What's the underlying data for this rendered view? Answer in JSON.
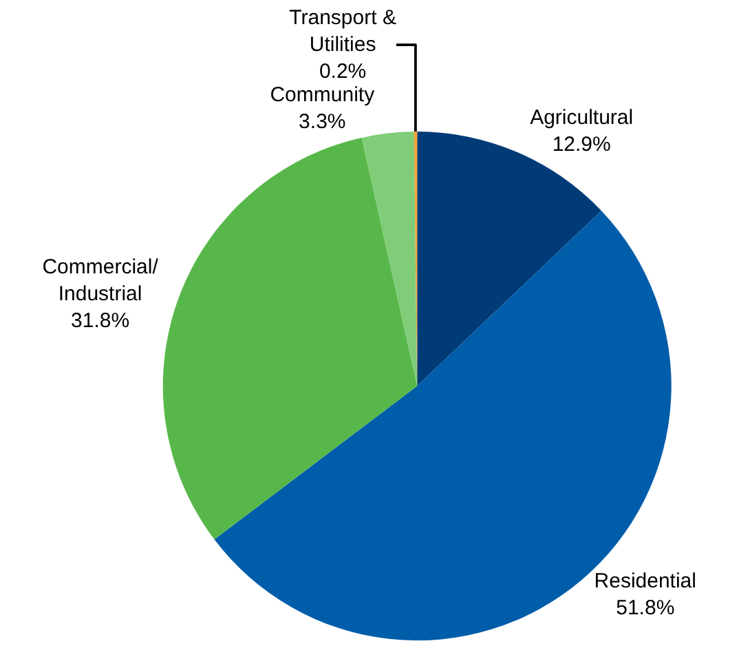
{
  "chart_data": {
    "type": "pie",
    "categories": [
      "Agricultural",
      "Residential",
      "Commercial/\nIndustrial",
      "Community",
      "Transport &\nUtilities"
    ],
    "values": [
      12.9,
      51.8,
      31.8,
      3.3,
      0.2
    ],
    "value_labels": [
      "12.9%",
      "51.8%",
      "31.8%",
      "3.3%",
      "0.2%"
    ],
    "colors": [
      "#003b78",
      "#005daa",
      "#58b74a",
      "#80cc78",
      "#f2a33a"
    ],
    "legend": false
  }
}
